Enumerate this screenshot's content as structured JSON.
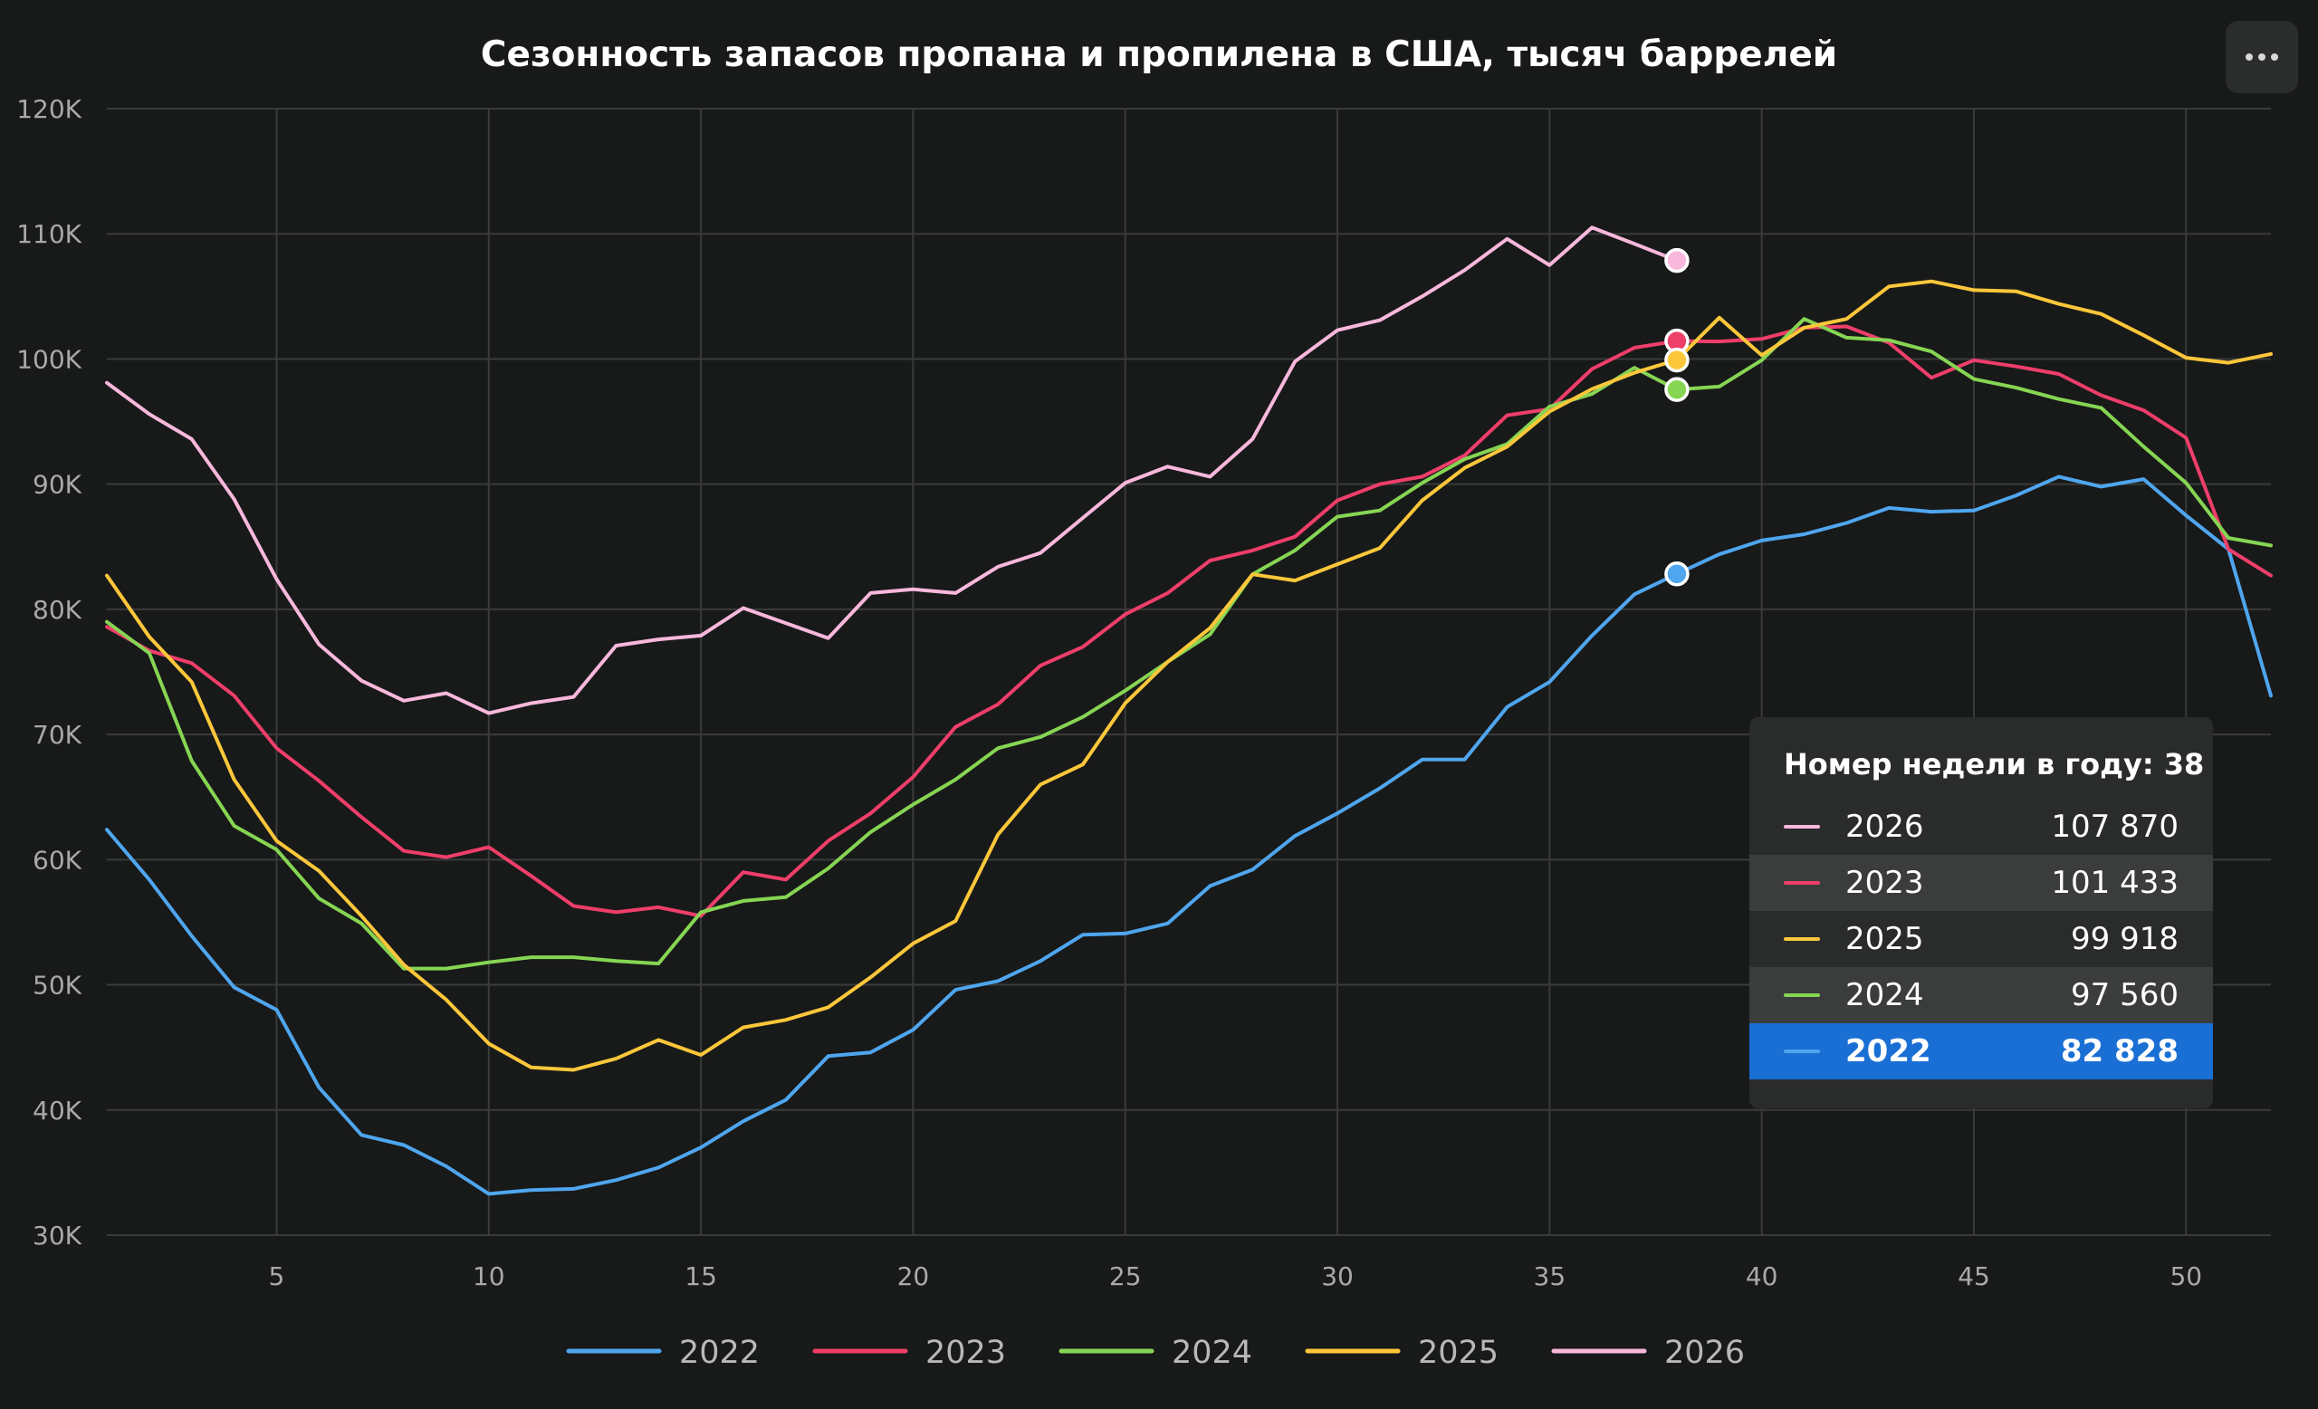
{
  "chart_data": {
    "type": "line",
    "title": "Сезонность запасов пропана и пропилена в США, тысяч баррелей",
    "xlabel": "",
    "ylabel": "",
    "xlim": [
      1,
      52
    ],
    "ylim": [
      30000,
      120000
    ],
    "x_ticks": [
      5,
      10,
      15,
      20,
      25,
      30,
      35,
      40,
      45,
      50
    ],
    "y_ticks": [
      30000,
      40000,
      50000,
      60000,
      70000,
      80000,
      90000,
      100000,
      110000,
      120000
    ],
    "y_tick_labels": [
      "30K",
      "40K",
      "50K",
      "60K",
      "70K",
      "80K",
      "90K",
      "100K",
      "110K",
      "120K"
    ],
    "grid": true,
    "legend_position": "bottom-center",
    "series": [
      {
        "name": "2022",
        "color": "#4fa6ee",
        "x": [
          1,
          2,
          3,
          4,
          5,
          6,
          7,
          8,
          9,
          10,
          11,
          12,
          13,
          14,
          15,
          16,
          17,
          18,
          19,
          20,
          21,
          22,
          23,
          24,
          25,
          26,
          27,
          28,
          29,
          30,
          31,
          32,
          33,
          34,
          35,
          36,
          37,
          38,
          39,
          40,
          41,
          42,
          43,
          44,
          45,
          46,
          47,
          48,
          49,
          50,
          51,
          52
        ],
        "values": [
          62400,
          58400,
          53900,
          49800,
          48000,
          41800,
          38000,
          37200,
          35500,
          33300,
          33600,
          33700,
          34400,
          35400,
          37000,
          39100,
          40800,
          44300,
          44600,
          46400,
          49600,
          50300,
          51900,
          54000,
          54100,
          54900,
          57900,
          59200,
          61900,
          63700,
          65700,
          68000,
          68000,
          72200,
          74200,
          77900,
          81200,
          82828,
          84400,
          85500,
          86000,
          86900,
          88100,
          87800,
          87900,
          89100,
          90600,
          89800,
          90400,
          87500,
          84800,
          73100
        ]
      },
      {
        "name": "2023",
        "color": "#ee3e6a",
        "x": [
          1,
          2,
          3,
          4,
          5,
          6,
          7,
          8,
          9,
          10,
          11,
          12,
          13,
          14,
          15,
          16,
          17,
          18,
          19,
          20,
          21,
          22,
          23,
          24,
          25,
          26,
          27,
          28,
          29,
          30,
          31,
          32,
          33,
          34,
          35,
          36,
          37,
          38,
          39,
          40,
          41,
          42,
          43,
          44,
          45,
          46,
          47,
          48,
          49,
          50,
          51,
          52
        ],
        "values": [
          78600,
          76700,
          75700,
          73100,
          68900,
          66300,
          63400,
          60700,
          60200,
          61000,
          58700,
          56300,
          55800,
          56200,
          55500,
          59000,
          58400,
          61500,
          63700,
          66600,
          70600,
          72400,
          75500,
          77000,
          79600,
          81300,
          83900,
          84700,
          85800,
          88700,
          90000,
          90600,
          92300,
          95500,
          96000,
          99200,
          100900,
          101433,
          101400,
          101600,
          102500,
          102600,
          101300,
          98500,
          99900,
          99400,
          98800,
          97100,
          95900,
          93700,
          84800,
          82700
        ]
      },
      {
        "name": "2024",
        "color": "#86d553",
        "x": [
          1,
          2,
          3,
          4,
          5,
          6,
          7,
          8,
          9,
          10,
          11,
          12,
          13,
          14,
          15,
          16,
          17,
          18,
          19,
          20,
          21,
          22,
          23,
          24,
          25,
          26,
          27,
          28,
          29,
          30,
          31,
          32,
          33,
          34,
          35,
          36,
          37,
          38,
          39,
          40,
          41,
          42,
          43,
          44,
          45,
          46,
          47,
          48,
          49,
          50,
          51,
          52
        ],
        "values": [
          79000,
          76500,
          67900,
          62700,
          60800,
          56900,
          54900,
          51300,
          51300,
          51800,
          52200,
          52200,
          51900,
          51700,
          55800,
          56700,
          57000,
          59300,
          62200,
          64400,
          66400,
          68900,
          69800,
          71400,
          73500,
          75800,
          78000,
          82800,
          84700,
          87400,
          87900,
          90100,
          92000,
          93200,
          96200,
          97200,
          99300,
          97560,
          97800,
          99900,
          103200,
          101700,
          101500,
          100600,
          98400,
          97700,
          96800,
          96100,
          93000,
          90100,
          85700,
          85100
        ]
      },
      {
        "name": "2025",
        "color": "#fcc73a",
        "x": [
          1,
          2,
          3,
          4,
          5,
          6,
          7,
          8,
          9,
          10,
          11,
          12,
          13,
          14,
          15,
          16,
          17,
          18,
          19,
          20,
          21,
          22,
          23,
          24,
          25,
          26,
          27,
          28,
          29,
          30,
          31,
          32,
          33,
          34,
          35,
          36,
          37,
          38,
          39,
          40,
          41,
          42,
          43,
          44,
          45,
          46,
          47,
          48,
          49,
          50,
          51,
          52
        ],
        "values": [
          82700,
          77800,
          74200,
          66400,
          61500,
          59100,
          55500,
          51600,
          48800,
          45300,
          43400,
          43200,
          44100,
          45600,
          44400,
          46600,
          47200,
          48200,
          50600,
          53300,
          55100,
          62000,
          66000,
          67600,
          72500,
          75800,
          78500,
          82800,
          82300,
          83600,
          84900,
          88700,
          91300,
          93000,
          95800,
          97600,
          98900,
          99918,
          103300,
          100300,
          102500,
          103200,
          105800,
          106200,
          105500,
          105400,
          104400,
          103600,
          101900,
          100100,
          99700,
          100400
        ]
      },
      {
        "name": "2026",
        "color": "#f8b8db",
        "x": [
          1,
          2,
          3,
          4,
          5,
          6,
          7,
          8,
          9,
          10,
          11,
          12,
          13,
          14,
          15,
          16,
          17,
          18,
          19,
          20,
          21,
          22,
          23,
          24,
          25,
          26,
          27,
          28,
          29,
          30,
          31,
          32,
          33,
          34,
          35,
          36,
          37,
          38
        ],
        "values": [
          98100,
          95600,
          93600,
          88800,
          82400,
          77200,
          74300,
          72700,
          73300,
          71700,
          72500,
          73000,
          77100,
          77600,
          77900,
          80100,
          78900,
          77700,
          81300,
          81600,
          81300,
          83400,
          84500,
          87300,
          90100,
          91400,
          90600,
          93600,
          99800,
          102300,
          103100,
          105000,
          107100,
          109600,
          107500,
          110500,
          109200,
          107870
        ]
      }
    ],
    "hover": {
      "x": 38,
      "label": "Номер недели в году: 38",
      "rows": [
        {
          "name": "2026",
          "value": "107 870",
          "color": "#f8b8db"
        },
        {
          "name": "2023",
          "value": "101 433",
          "color": "#ee3e6a"
        },
        {
          "name": "2025",
          "value": "99 918",
          "color": "#fcc73a"
        },
        {
          "name": "2024",
          "value": "97 560",
          "color": "#86d553"
        },
        {
          "name": "2022",
          "value": "82 828",
          "color": "#4fa6ee",
          "highlighted": true
        }
      ]
    }
  },
  "toolbar": {
    "menu_icon": "more-horizontal-icon"
  }
}
